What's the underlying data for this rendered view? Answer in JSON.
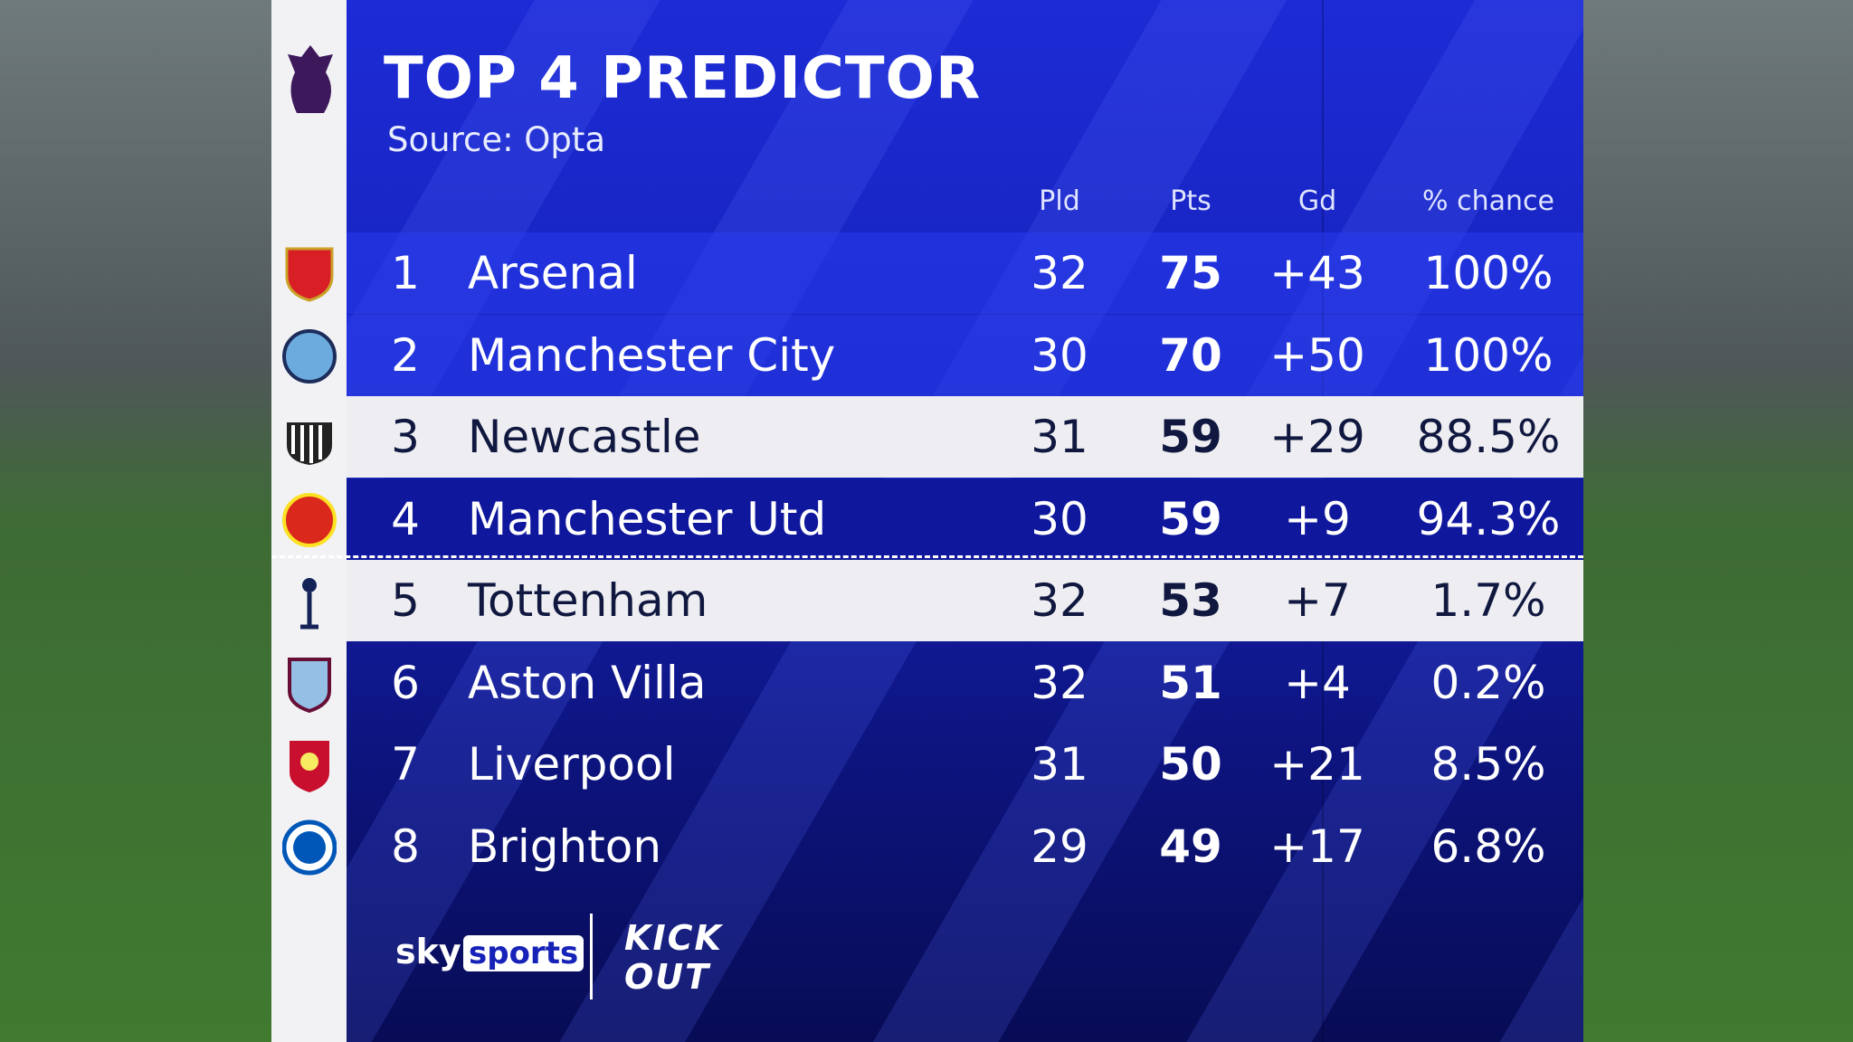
{
  "header": {
    "title": "TOP 4 PREDICTOR",
    "subtitle": "Source: Opta"
  },
  "table": {
    "columns": [
      "Pld",
      "Pts",
      "Gd",
      "% chance"
    ],
    "rows": [
      {
        "pos": "1",
        "team": "Arsenal",
        "pld": "32",
        "pts": "75",
        "gd": "+43",
        "chance": "100%"
      },
      {
        "pos": "2",
        "team": "Manchester City",
        "pld": "30",
        "pts": "70",
        "gd": "+50",
        "chance": "100%"
      },
      {
        "pos": "3",
        "team": "Newcastle",
        "pld": "31",
        "pts": "59",
        "gd": "+29",
        "chance": "88.5%"
      },
      {
        "pos": "4",
        "team": "Manchester Utd",
        "pld": "30",
        "pts": "59",
        "gd": "+9",
        "chance": "94.3%"
      },
      {
        "pos": "5",
        "team": "Tottenham",
        "pld": "32",
        "pts": "53",
        "gd": "+7",
        "chance": "1.7%"
      },
      {
        "pos": "6",
        "team": "Aston Villa",
        "pld": "32",
        "pts": "51",
        "gd": "+4",
        "chance": "0.2%"
      },
      {
        "pos": "7",
        "team": "Liverpool",
        "pld": "31",
        "pts": "50",
        "gd": "+21",
        "chance": "8.5%"
      },
      {
        "pos": "8",
        "team": "Brighton",
        "pld": "29",
        "pts": "49",
        "gd": "+17",
        "chance": "6.8%"
      }
    ]
  },
  "footer": {
    "sky": "sky",
    "sports": "sports",
    "kick_it_out": [
      "KICK",
      "OUT"
    ]
  }
}
